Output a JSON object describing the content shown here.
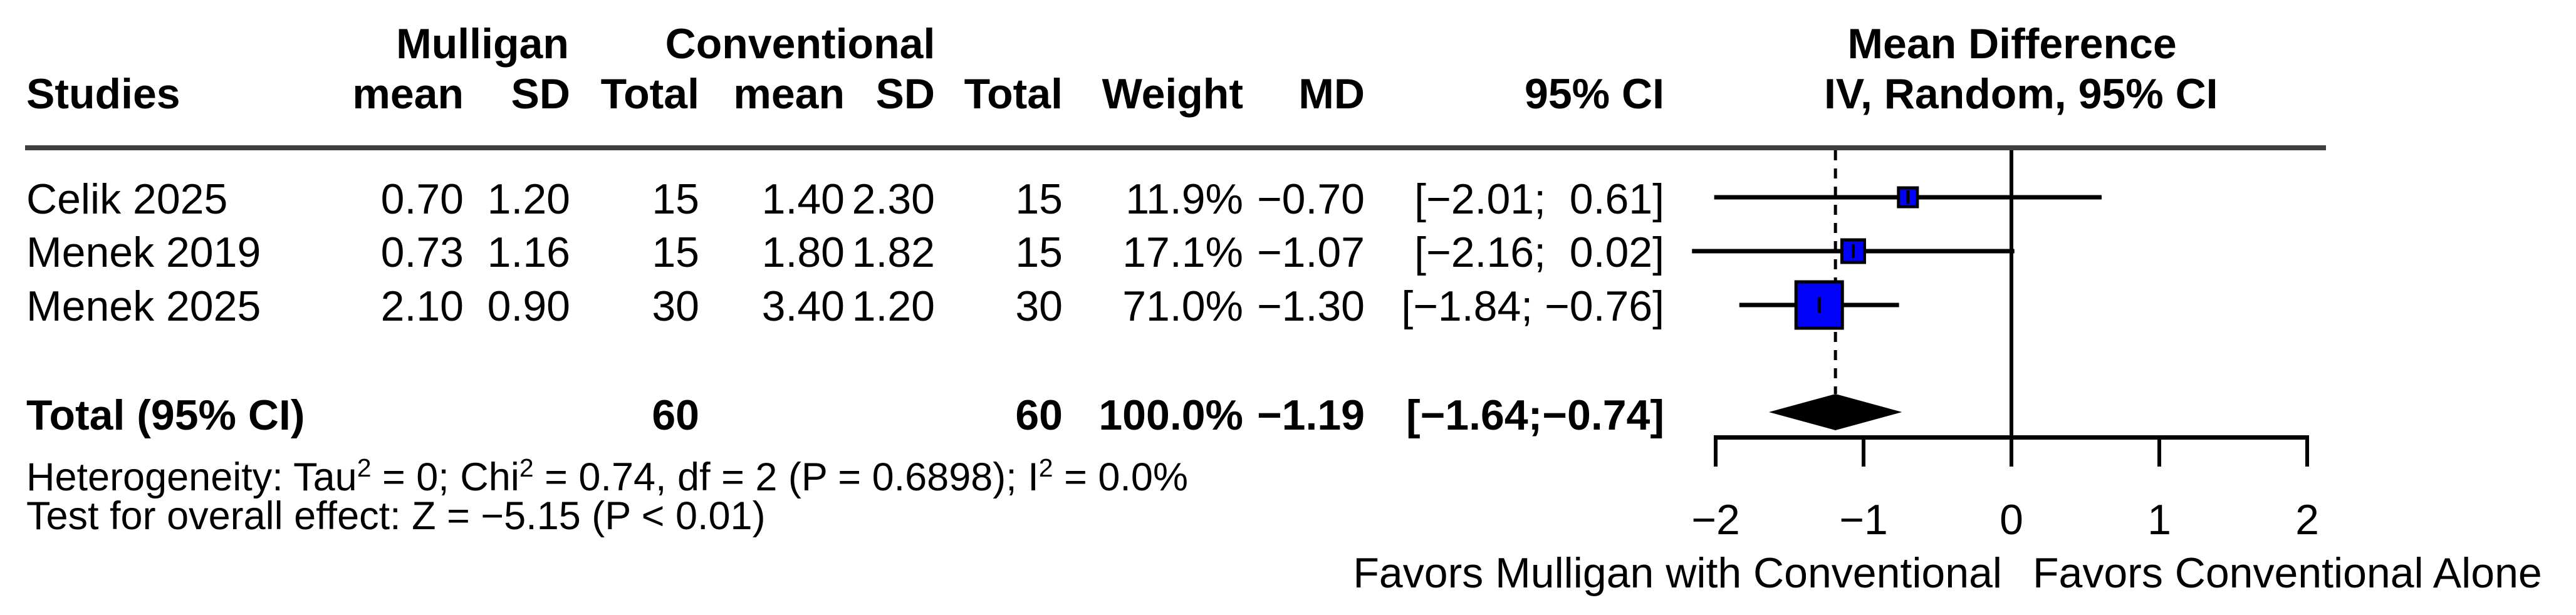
{
  "table": {
    "group_headers": {
      "mulligan": "Mulligan",
      "conventional": "Conventional",
      "mean_difference": "Mean Difference"
    },
    "col_headers": {
      "studies": "Studies",
      "m_mean": "mean",
      "m_sd": "SD",
      "m_total": "Total",
      "c_mean": "mean",
      "c_sd": "SD",
      "c_total": "Total",
      "weight": "Weight",
      "md": "MD",
      "ci": "95% CI",
      "iv_random": "IV, Random, 95% CI"
    },
    "rows": [
      {
        "study": "Celik 2025",
        "m_mean": "0.70",
        "m_sd": "1.20",
        "m_total": "15",
        "c_mean": "1.40",
        "c_sd": "2.30",
        "c_total": "15",
        "weight": "11.9%",
        "md": "−0.70",
        "ci": "[−2.01;  0.61]"
      },
      {
        "study": "Menek 2019",
        "m_mean": "0.73",
        "m_sd": "1.16",
        "m_total": "15",
        "c_mean": "1.80",
        "c_sd": "1.82",
        "c_total": "15",
        "weight": "17.1%",
        "md": "−1.07",
        "ci": "[−2.16;  0.02]"
      },
      {
        "study": "Menek 2025",
        "m_mean": "2.10",
        "m_sd": "0.90",
        "m_total": "30",
        "c_mean": "3.40",
        "c_sd": "1.20",
        "c_total": "30",
        "weight": "71.0%",
        "md": "−1.30",
        "ci": "[−1.84; −0.76]"
      }
    ],
    "total_row": {
      "label": "Total (95% CI)",
      "m_total": "60",
      "c_total": "60",
      "weight": "100.0%",
      "md": "−1.19",
      "ci": "[−1.64;−0.74]"
    }
  },
  "footnotes": {
    "het_p1": "Heterogeneity: Tau",
    "het_s1": "2",
    "het_p2": " = 0; Chi",
    "het_s2": "2",
    "het_p3": " = 0.74, df = 2 (P = 0.6898); I",
    "het_s3": "2",
    "het_p4": " = 0.0%",
    "overall_effect": "Test for overall effect: Z = −5.15 (P < 0.01)"
  },
  "axis": {
    "tick_labels": [
      "−2",
      "−1",
      "0",
      "1",
      "2"
    ],
    "tick_values": [
      -2,
      -1,
      0,
      1,
      2
    ],
    "favors_left": "Favors Mulligan with Conventional",
    "favors_right": "Favors Conventional Alone"
  },
  "colors": {
    "square_fill": "#0202fa",
    "square_stroke": "#000000",
    "line": "#000000",
    "header_rule": "#3f3f3f",
    "diamond": "#000000"
  },
  "chart_data": {
    "type": "forest",
    "effect_measure": "Mean Difference",
    "model": "IV, Random, 95% CI",
    "x_ticks": [
      -2,
      -1,
      0,
      1,
      2
    ],
    "xlim": [
      -2,
      2
    ],
    "zero_line": 0,
    "pooled_line": -1.19,
    "studies": [
      {
        "name": "Celik 2025",
        "mulligan": {
          "mean": 0.7,
          "sd": 1.2,
          "total": 15
        },
        "conventional": {
          "mean": 1.4,
          "sd": 2.3,
          "total": 15
        },
        "weight_pct": 11.9,
        "md": -0.7,
        "ci": [
          -2.01,
          0.61
        ]
      },
      {
        "name": "Menek 2019",
        "mulligan": {
          "mean": 0.73,
          "sd": 1.16,
          "total": 15
        },
        "conventional": {
          "mean": 1.8,
          "sd": 1.82,
          "total": 15
        },
        "weight_pct": 17.1,
        "md": -1.07,
        "ci": [
          -2.16,
          0.02
        ]
      },
      {
        "name": "Menek 2025",
        "mulligan": {
          "mean": 2.1,
          "sd": 0.9,
          "total": 30
        },
        "conventional": {
          "mean": 3.4,
          "sd": 1.2,
          "total": 30
        },
        "weight_pct": 71.0,
        "md": -1.3,
        "ci": [
          -1.84,
          -0.76
        ]
      }
    ],
    "total": {
      "label": "Total (95% CI)",
      "mulligan_total": 60,
      "conventional_total": 60,
      "weight_pct": 100.0,
      "md": -1.19,
      "ci": [
        -1.64,
        -0.74
      ]
    },
    "heterogeneity": {
      "tau2": 0,
      "chi2": 0.74,
      "df": 2,
      "p": 0.6898,
      "i2_pct": 0.0
    },
    "overall_effect": {
      "z": -5.15,
      "p": "< 0.01"
    }
  }
}
